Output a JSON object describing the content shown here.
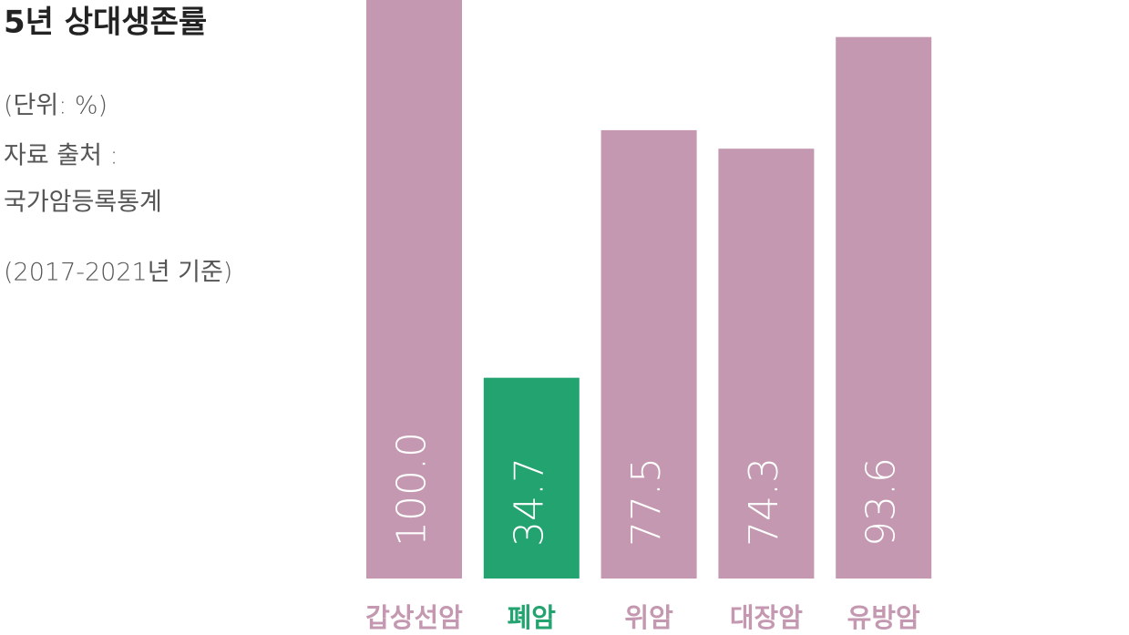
{
  "chart_data": {
    "type": "bar",
    "title": "5년 상대생존률",
    "unit": "(단위: %)",
    "source_label": "자료 출처 :",
    "source": "국가암등록통계",
    "period": "(2017-2021년 기준)",
    "categories": [
      "갑상선암",
      "폐암",
      "위암",
      "대장암",
      "유방암"
    ],
    "values": [
      100.0,
      34.7,
      77.5,
      74.3,
      93.6
    ],
    "value_labels": [
      "100.0",
      "34.7",
      "77.5",
      "74.3",
      "93.6"
    ],
    "colors": [
      "#c498b0",
      "#22a36f",
      "#c498b0",
      "#c498b0",
      "#c498b0"
    ],
    "ylim": [
      0,
      100
    ]
  }
}
